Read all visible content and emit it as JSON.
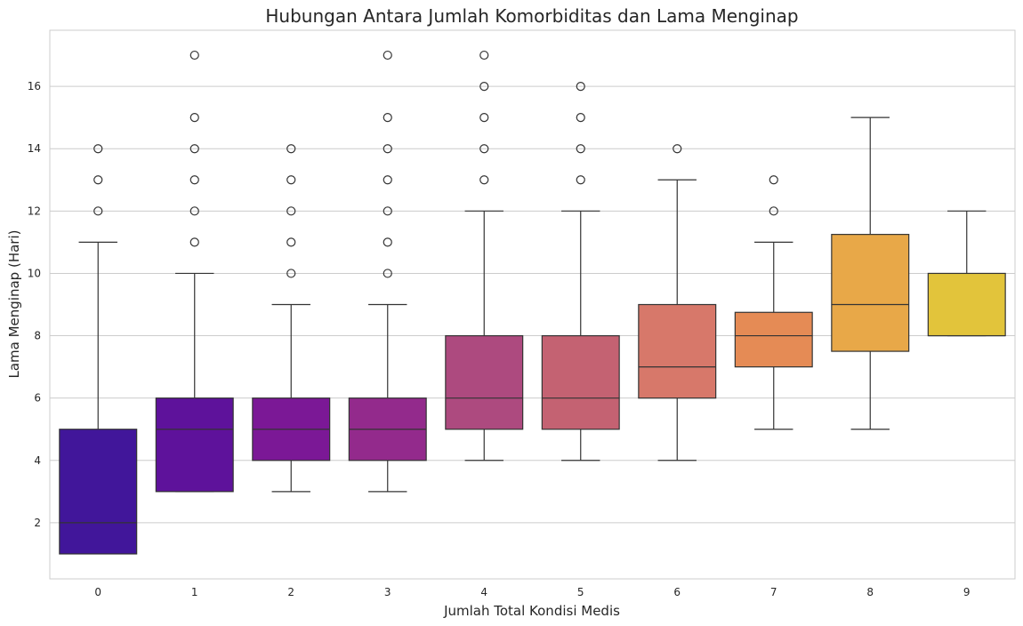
{
  "chart_data": {
    "type": "box",
    "title": "Hubungan Antara Jumlah Komorbiditas dan Lama Menginap",
    "xlabel": "Jumlah Total Kondisi Medis",
    "ylabel": "Lama Menginap (Hari)",
    "ylim": [
      0.2,
      17.8
    ],
    "yticks": [
      2,
      4,
      6,
      8,
      10,
      12,
      14,
      16
    ],
    "ytick_labels": [
      "2",
      "4",
      "6",
      "8",
      "10",
      "12",
      "14",
      "16"
    ],
    "grid": true,
    "legend": "none",
    "categories": [
      "0",
      "1",
      "2",
      "3",
      "4",
      "5",
      "6",
      "7",
      "8",
      "9"
    ],
    "boxes": [
      {
        "category": "0",
        "whisker_low": 1,
        "q1": 1,
        "median": 2,
        "q3": 5,
        "whisker_high": 11,
        "outliers": [
          12,
          13,
          14
        ],
        "color": "#41169a"
      },
      {
        "category": "1",
        "whisker_low": 3,
        "q1": 3,
        "median": 5,
        "q3": 6,
        "whisker_high": 10,
        "outliers": [
          11,
          12,
          13,
          14,
          15,
          17
        ],
        "color": "#5e129b"
      },
      {
        "category": "2",
        "whisker_low": 3,
        "q1": 4,
        "median": 5,
        "q3": 6,
        "whisker_high": 9,
        "outliers": [
          10,
          11,
          12,
          13,
          14
        ],
        "color": "#7b1896"
      },
      {
        "category": "3",
        "whisker_low": 3,
        "q1": 4,
        "median": 5,
        "q3": 6,
        "whisker_high": 9,
        "outliers": [
          10,
          11,
          12,
          13,
          14,
          15,
          17
        ],
        "color": "#932a8c"
      },
      {
        "category": "4",
        "whisker_low": 4,
        "q1": 5,
        "median": 6,
        "q3": 8,
        "whisker_high": 12,
        "outliers": [
          13,
          14,
          15,
          16,
          17
        ],
        "color": "#ad4a7f"
      },
      {
        "category": "5",
        "whisker_low": 4,
        "q1": 5,
        "median": 6,
        "q3": 8,
        "whisker_high": 12,
        "outliers": [
          13,
          14,
          15,
          16
        ],
        "color": "#c46272"
      },
      {
        "category": "6",
        "whisker_low": 4,
        "q1": 6,
        "median": 7,
        "q3": 9,
        "whisker_high": 13,
        "outliers": [
          14
        ],
        "color": "#d7786a"
      },
      {
        "category": "7",
        "whisker_low": 5,
        "q1": 7,
        "median": 8,
        "q3": 8.75,
        "whisker_high": 11,
        "outliers": [
          12,
          13
        ],
        "color": "#e58b55"
      },
      {
        "category": "8",
        "whisker_low": 5,
        "q1": 7.5,
        "median": 9,
        "q3": 11.25,
        "whisker_high": 15,
        "outliers": [],
        "color": "#e8a848"
      },
      {
        "category": "9",
        "whisker_low": 8,
        "q1": 8,
        "median": 8,
        "q3": 10,
        "whisker_high": 12,
        "outliers": [],
        "color": "#e2c43b"
      }
    ]
  }
}
